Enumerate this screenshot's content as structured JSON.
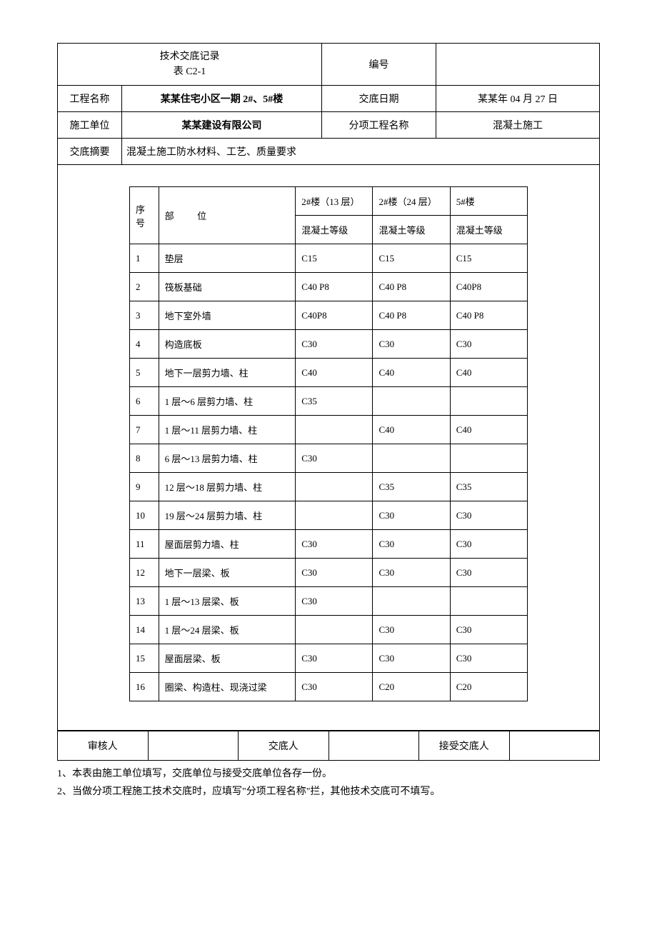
{
  "header": {
    "title_line1": "技术交底记录",
    "title_line2": "表 C2-1",
    "number_label": "编号",
    "number_value": "",
    "project_name_label": "工程名称",
    "project_name_value": "某某住宅小区一期 2#、5#楼",
    "date_label": "交底日期",
    "date_value": "某某年 04 月 27 日",
    "unit_label": "施工单位",
    "unit_value": "某某建设有限公司",
    "subproject_label": "分项工程名称",
    "subproject_value": "混凝土施工",
    "summary_label": "交底摘要",
    "summary_value": "混凝土施工防水材料、工艺、质量要求"
  },
  "inner": {
    "seq_header": "序号",
    "pos_header": "部位",
    "col1_top": "2#楼（13 层）",
    "col2_top": "2#楼（24 层）",
    "col3_top": "5#楼",
    "grade_label": "混凝土等级",
    "rows": [
      {
        "seq": "1",
        "pos": "垫层",
        "c1": "C15",
        "c2": "C15",
        "c3": "C15"
      },
      {
        "seq": "2",
        "pos": "筏板基础",
        "c1": "C40 P8",
        "c2": "C40 P8",
        "c3": "C40P8"
      },
      {
        "seq": "3",
        "pos": "地下室外墙",
        "c1": "C40P8",
        "c2": "C40 P8",
        "c3": "C40 P8"
      },
      {
        "seq": "4",
        "pos": "构造底板",
        "c1": "C30",
        "c2": "C30",
        "c3": "C30"
      },
      {
        "seq": "5",
        "pos": "地下一层剪力墙、柱",
        "c1": "C40",
        "c2": "C40",
        "c3": "C40"
      },
      {
        "seq": "6",
        "pos": "1 层～6 层剪力墙、柱",
        "c1": "C35",
        "c2": "",
        "c3": ""
      },
      {
        "seq": "7",
        "pos": "1 层～11 层剪力墙、柱",
        "c1": "",
        "c2": "C40",
        "c3": "C40"
      },
      {
        "seq": "8",
        "pos": "6 层～13 层剪力墙、柱",
        "c1": "C30",
        "c2": "",
        "c3": ""
      },
      {
        "seq": "9",
        "pos": "12 层～18 层剪力墙、柱",
        "c1": "",
        "c2": "C35",
        "c3": "C35"
      },
      {
        "seq": "10",
        "pos": "19 层～24 层剪力墙、柱",
        "c1": "",
        "c2": "C30",
        "c3": "C30"
      },
      {
        "seq": "11",
        "pos": "屋面层剪力墙、柱",
        "c1": "C30",
        "c2": "C30",
        "c3": "C30"
      },
      {
        "seq": "12",
        "pos": "地下一层梁、板",
        "c1": "C30",
        "c2": "C30",
        "c3": "C30"
      },
      {
        "seq": "13",
        "pos": "1 层～13 层梁、板",
        "c1": "C30",
        "c2": "",
        "c3": ""
      },
      {
        "seq": "14",
        "pos": "1 层～24 层梁、板",
        "c1": "",
        "c2": "C30",
        "c3": "C30"
      },
      {
        "seq": "15",
        "pos": "屋面层梁、板",
        "c1": "C30",
        "c2": "C30",
        "c3": "C30"
      },
      {
        "seq": "16",
        "pos": "圈梁、构造柱、现浇过梁",
        "c1": "C30",
        "c2": "C20",
        "c3": "C20"
      }
    ]
  },
  "footer": {
    "reviewer_label": "审核人",
    "reviewer_value": "",
    "presenter_label": "交底人",
    "presenter_value": "",
    "receiver_label": "接受交底人",
    "receiver_value": ""
  },
  "notes": {
    "n1": "1、本表由施工单位填写，交底单位与接受交底单位各存一份。",
    "n2": "2、当做分项工程施工技术交底时，应填写\"分项工程名称\"拦，其他技术交底可不填写。"
  },
  "style": {
    "border_color": "#000000",
    "bg_color": "#ffffff",
    "text_color": "#000000",
    "font_size_body": 14,
    "font_size_inner": 13
  }
}
